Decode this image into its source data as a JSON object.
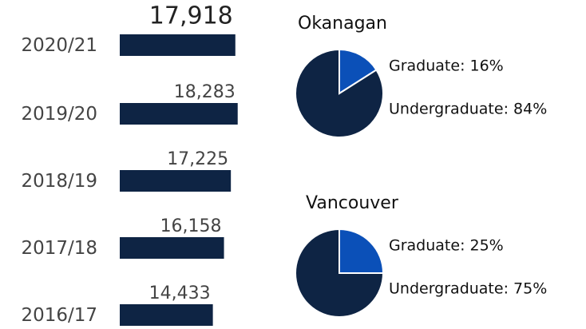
{
  "chart_data": [
    {
      "type": "bar",
      "orientation": "horizontal",
      "categories": [
        "2020/21",
        "2019/20",
        "2018/19",
        "2017/18",
        "2016/17"
      ],
      "values": [
        17918,
        18283,
        17225,
        16158,
        14433
      ],
      "value_labels": [
        "17,918",
        "18,283",
        "17,225",
        "16,158",
        "14,433"
      ],
      "color": "#0e2444"
    },
    {
      "type": "pie",
      "title": "Okanagan",
      "values": [
        16,
        84
      ],
      "value_labels": [
        "Graduate: 16%",
        "Undergraduate: 84%"
      ],
      "colors": [
        "#0b50b8",
        "#0e2444"
      ]
    },
    {
      "type": "pie",
      "title": "Vancouver",
      "values": [
        25,
        75
      ],
      "value_labels": [
        "Graduate: 25%",
        "Undergraduate: 75%"
      ],
      "colors": [
        "#0b50b8",
        "#0e2444"
      ]
    }
  ]
}
